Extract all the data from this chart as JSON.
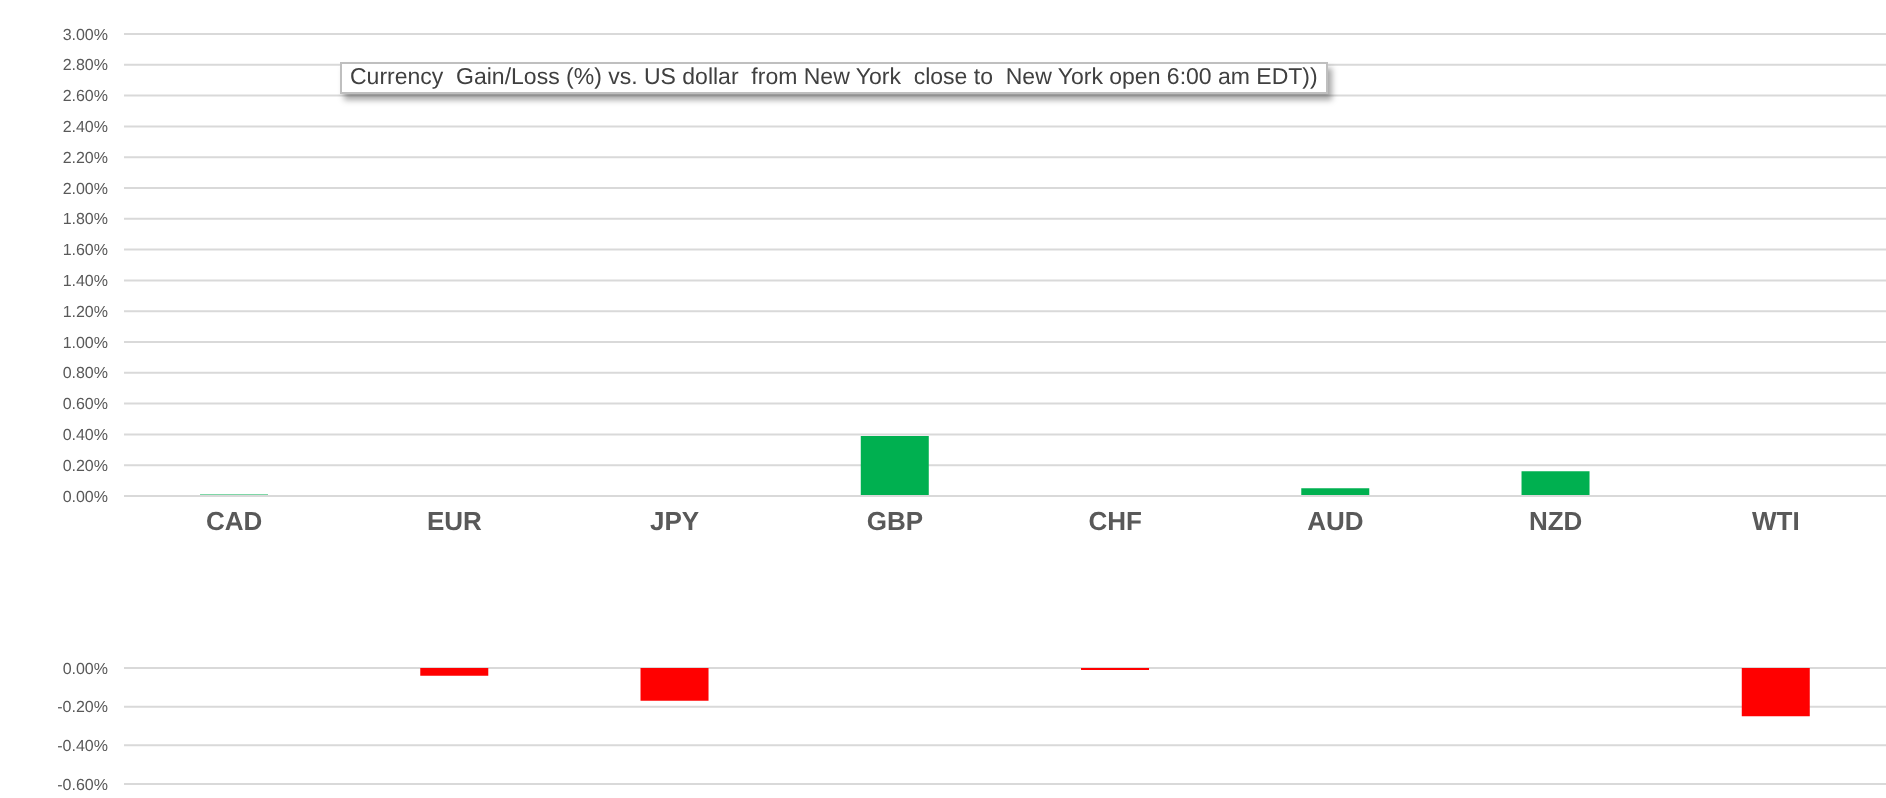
{
  "chart_data": [
    {
      "type": "bar",
      "title": "Currency  Gain/Loss (%) vs. US dollar  from New York  close to  New York open 6:00 am EDT))",
      "categories": [
        "CAD",
        "EUR",
        "JPY",
        "GBP",
        "CHF",
        "AUD",
        "NZD",
        "WTI"
      ],
      "series": [
        {
          "color": "#00b050",
          "values": [
            0.01,
            null,
            null,
            0.39,
            null,
            0.05,
            0.16,
            null
          ]
        }
      ],
      "ylim": [
        0,
        3
      ],
      "yticks": [
        {
          "value": 0,
          "label": "0.00%"
        },
        {
          "value": 0.2,
          "label": "0.20%"
        },
        {
          "value": 0.4,
          "label": "0.40%"
        },
        {
          "value": 0.6,
          "label": "0.60%"
        },
        {
          "value": 0.8,
          "label": "0.80%"
        },
        {
          "value": 1,
          "label": "1.00%"
        },
        {
          "value": 1.2,
          "label": "1.20%"
        },
        {
          "value": 1.4,
          "label": "1.40%"
        },
        {
          "value": 1.6,
          "label": "1.60%"
        },
        {
          "value": 1.8,
          "label": "1.80%"
        },
        {
          "value": 2,
          "label": "2.00%"
        },
        {
          "value": 2.2,
          "label": "2.20%"
        },
        {
          "value": 2.4,
          "label": "2.40%"
        },
        {
          "value": 2.6,
          "label": "2.60%"
        },
        {
          "value": 2.8,
          "label": "2.80%"
        },
        {
          "value": 3,
          "label": "3.00%"
        }
      ],
      "grid": "y",
      "legend": false
    },
    {
      "type": "bar",
      "categories": [
        null,
        null,
        null,
        null,
        null,
        null,
        null,
        null
      ],
      "series": [
        {
          "color": "#ff0000",
          "values": [
            null,
            -0.04,
            -0.17,
            null,
            -0.01,
            null,
            null,
            -0.25
          ]
        }
      ],
      "ylim": [
        -0.6,
        0
      ],
      "yticks": [
        {
          "value": 0,
          "label": "0.00%"
        },
        {
          "value": -0.2,
          "label": "-0.20%"
        },
        {
          "value": -0.4,
          "label": "-0.40%"
        },
        {
          "value": -0.6,
          "label": "-0.60%"
        }
      ],
      "grid": "y",
      "legend": false,
      "tick_labels": "y"
    }
  ]
}
